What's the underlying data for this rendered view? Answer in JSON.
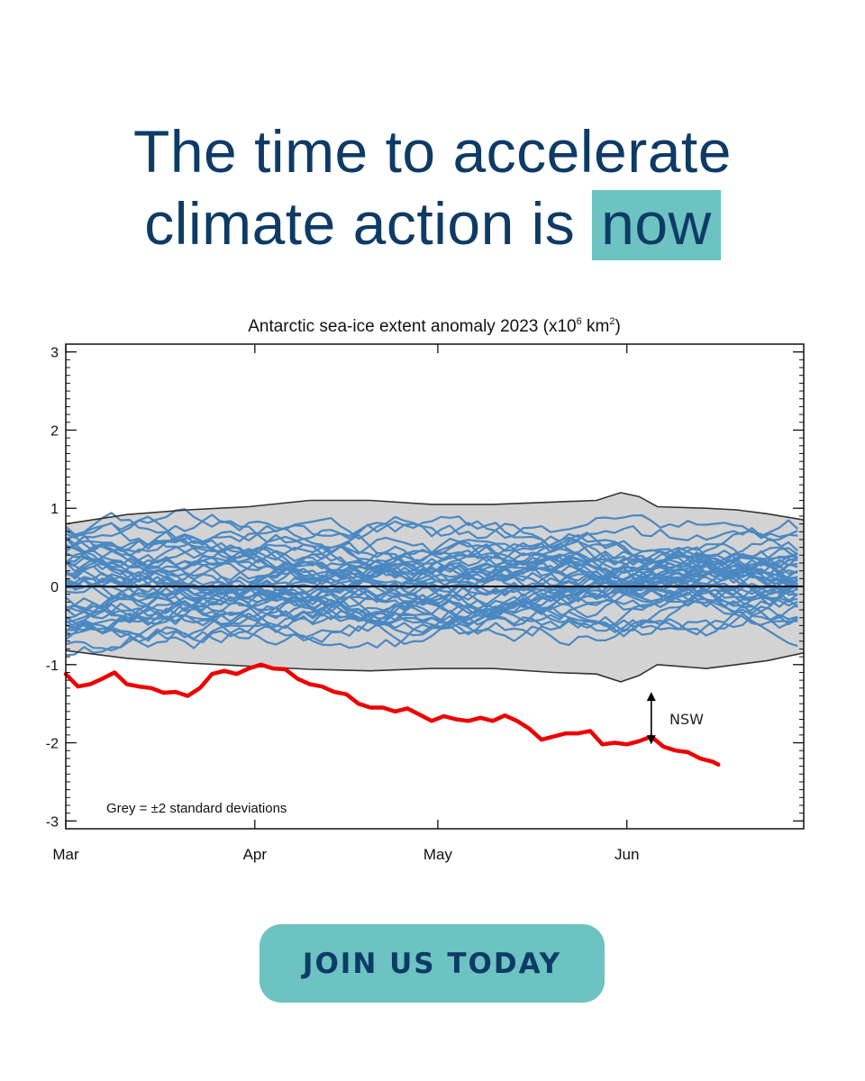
{
  "headline": {
    "line1": "The time to accelerate",
    "line2_prefix": "climate action is ",
    "highlight": "now"
  },
  "cta": {
    "label": "JOIN US TODAY"
  },
  "colors": {
    "headline_text": "#0d3b66",
    "highlight_bg": "#6cc3c1",
    "cta_bg": "#6cc3c1",
    "cta_text": "#0d3b66",
    "series_2023": "#ee0000",
    "other_years": "#4a88c2",
    "band_fill": "#d3d3d3"
  },
  "chart_data": {
    "type": "line",
    "title": "Antarctic sea-ice extent anomaly 2023 (x10",
    "title_sup": "6",
    "title_unit": " km",
    "title_unit_sup": "2",
    "title_close": ")",
    "xlim": [
      0,
      121
    ],
    "ylim": [
      -3.1,
      3.1
    ],
    "x_ticks": [
      {
        "x": 0,
        "label": "Mar"
      },
      {
        "x": 31,
        "label": "Apr"
      },
      {
        "x": 61,
        "label": "May"
      },
      {
        "x": 92,
        "label": "Jun"
      }
    ],
    "y_ticks": [
      {
        "y": 3,
        "label": "3"
      },
      {
        "y": 2,
        "label": "2"
      },
      {
        "y": 1,
        "label": "1"
      },
      {
        "y": 0,
        "label": "0"
      },
      {
        "y": -1,
        "label": "-1"
      },
      {
        "y": -2,
        "label": "-2"
      },
      {
        "y": -3,
        "label": "-3"
      }
    ],
    "band_label": "Grey = ±2 standard deviations",
    "band_upper": [
      [
        0,
        0.8
      ],
      [
        10,
        0.92
      ],
      [
        20,
        0.98
      ],
      [
        30,
        1.02
      ],
      [
        40,
        1.1
      ],
      [
        50,
        1.1
      ],
      [
        60,
        1.05
      ],
      [
        70,
        1.05
      ],
      [
        80,
        1.08
      ],
      [
        87,
        1.1
      ],
      [
        91,
        1.2
      ],
      [
        94,
        1.15
      ],
      [
        97,
        1.02
      ],
      [
        105,
        1.0
      ],
      [
        110,
        0.98
      ],
      [
        115,
        0.93
      ],
      [
        121,
        0.85
      ]
    ],
    "band_lower": [
      [
        0,
        -0.82
      ],
      [
        10,
        -0.92
      ],
      [
        20,
        -0.98
      ],
      [
        30,
        -1.02
      ],
      [
        40,
        -1.06
      ],
      [
        50,
        -1.08
      ],
      [
        60,
        -1.05
      ],
      [
        70,
        -1.05
      ],
      [
        80,
        -1.1
      ],
      [
        87,
        -1.12
      ],
      [
        91,
        -1.22
      ],
      [
        94,
        -1.14
      ],
      [
        97,
        -1.0
      ],
      [
        105,
        -1.05
      ],
      [
        110,
        -1.0
      ],
      [
        115,
        -0.95
      ],
      [
        121,
        -0.85
      ]
    ],
    "mean_line": 0,
    "series_2023": {
      "name": "2023",
      "points": [
        [
          0,
          -1.12
        ],
        [
          2,
          -1.28
        ],
        [
          4,
          -1.25
        ],
        [
          6,
          -1.18
        ],
        [
          8,
          -1.1
        ],
        [
          10,
          -1.25
        ],
        [
          12,
          -1.28
        ],
        [
          14,
          -1.3
        ],
        [
          16,
          -1.36
        ],
        [
          18,
          -1.35
        ],
        [
          20,
          -1.4
        ],
        [
          22,
          -1.3
        ],
        [
          24,
          -1.12
        ],
        [
          26,
          -1.08
        ],
        [
          28,
          -1.12
        ],
        [
          30,
          -1.05
        ],
        [
          32,
          -1.0
        ],
        [
          34,
          -1.05
        ],
        [
          36,
          -1.06
        ],
        [
          38,
          -1.18
        ],
        [
          40,
          -1.25
        ],
        [
          42,
          -1.28
        ],
        [
          44,
          -1.35
        ],
        [
          46,
          -1.38
        ],
        [
          48,
          -1.5
        ],
        [
          50,
          -1.55
        ],
        [
          52,
          -1.55
        ],
        [
          54,
          -1.6
        ],
        [
          56,
          -1.56
        ],
        [
          58,
          -1.64
        ],
        [
          60,
          -1.72
        ],
        [
          62,
          -1.66
        ],
        [
          64,
          -1.7
        ],
        [
          66,
          -1.72
        ],
        [
          68,
          -1.68
        ],
        [
          70,
          -1.72
        ],
        [
          72,
          -1.65
        ],
        [
          74,
          -1.72
        ],
        [
          76,
          -1.82
        ],
        [
          78,
          -1.96
        ],
        [
          80,
          -1.92
        ],
        [
          82,
          -1.88
        ],
        [
          84,
          -1.88
        ],
        [
          86,
          -1.85
        ],
        [
          88,
          -2.02
        ],
        [
          90,
          -2.0
        ],
        [
          92,
          -2.02
        ],
        [
          94,
          -1.98
        ],
        [
          96,
          -1.92
        ],
        [
          98,
          -2.05
        ],
        [
          100,
          -2.1
        ],
        [
          102,
          -2.12
        ],
        [
          104,
          -2.2
        ],
        [
          106,
          -2.24
        ],
        [
          107,
          -2.28
        ]
      ]
    },
    "annotation": {
      "label": "NSW",
      "x": 96,
      "y_top": -1.35,
      "y_bottom": -2.02
    }
  }
}
